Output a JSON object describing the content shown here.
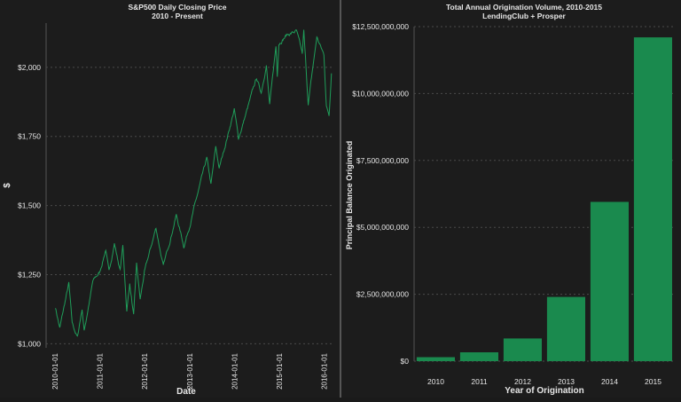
{
  "chart_data": [
    {
      "type": "line",
      "title": "S&P500 Daily Closing Price",
      "subtitle": "2010 - Present",
      "xlabel": "Date",
      "ylabel": "$",
      "ylim": [
        985,
        2160
      ],
      "yticks": [
        1000,
        1250,
        1500,
        1750,
        2000
      ],
      "ytick_labels": [
        "$1,000",
        "$1,250",
        "$1,500",
        "$1,750",
        "$2,000"
      ],
      "xticks": [
        "2010-01-01",
        "2011-01-01",
        "2012-01-01",
        "2013-01-01",
        "2014-01-01",
        "2015-01-01",
        "2016-01-01"
      ],
      "xlim": [
        "2009-10-20",
        "2016-03-10"
      ],
      "grid": true,
      "color": "#1f9e5a",
      "series": [
        {
          "x": [
            "2010-01-04",
            "2010-02-08",
            "2010-04-23",
            "2010-05-20",
            "2010-07-02",
            "2010-08-09",
            "2010-08-26",
            "2010-11-05",
            "2010-12-31",
            "2011-02-18",
            "2011-03-16",
            "2011-04-29",
            "2011-06-15",
            "2011-07-07",
            "2011-08-08",
            "2011-09-01",
            "2011-10-03",
            "2011-10-27",
            "2011-11-25",
            "2011-12-30",
            "2012-04-02",
            "2012-06-01",
            "2012-09-14",
            "2012-11-15",
            "2012-12-31",
            "2013-05-21",
            "2013-06-24",
            "2013-08-02",
            "2013-08-30",
            "2013-12-31",
            "2014-02-03",
            "2014-06-30",
            "2014-08-07",
            "2014-09-18",
            "2014-10-15",
            "2014-12-05",
            "2014-12-16",
            "2014-12-29",
            "2015-03-02",
            "2015-05-21",
            "2015-07-08",
            "2015-07-20",
            "2015-08-25",
            "2015-11-03",
            "2015-12-31",
            "2016-01-20",
            "2016-02-11",
            "2016-03-01"
          ],
          "y": [
            1133,
            1056,
            1217,
            1072,
            1022,
            1127,
            1047,
            1225,
            1258,
            1343,
            1256,
            1364,
            1265,
            1353,
            1119,
            1219,
            1099,
            1285,
            1158,
            1258,
            1419,
            1278,
            1466,
            1353,
            1426,
            1669,
            1573,
            1709,
            1633,
            1848,
            1741,
            1960,
            1909,
            2011,
            1862,
            2075,
            1972,
            2090,
            2117,
            2131,
            2046,
            2128,
            1867,
            2109,
            2044,
            1859,
            1829,
            1978
          ]
        }
      ]
    },
    {
      "type": "bar",
      "title": "Total Annual Origination Volume, 2010-2015",
      "subtitle": "LendingClub + Prosper",
      "xlabel": "Year of Origination",
      "ylabel": "Principal Balance Originated",
      "categories": [
        "2010",
        "2011",
        "2012",
        "2013",
        "2014",
        "2015"
      ],
      "values": [
        150000000,
        330000000,
        850000000,
        2400000000,
        5950000000,
        12100000000
      ],
      "ylim": [
        0,
        12500000000
      ],
      "yticks": [
        0,
        2500000000,
        5000000000,
        7500000000,
        10000000000,
        12500000000
      ],
      "ytick_labels": [
        "$0",
        "$2,500,000,000",
        "$5,000,000,000",
        "$7,500,000,000",
        "$10,000,000,000",
        "$12,500,000,000"
      ],
      "grid": true,
      "color": "#1a8a4e"
    }
  ]
}
